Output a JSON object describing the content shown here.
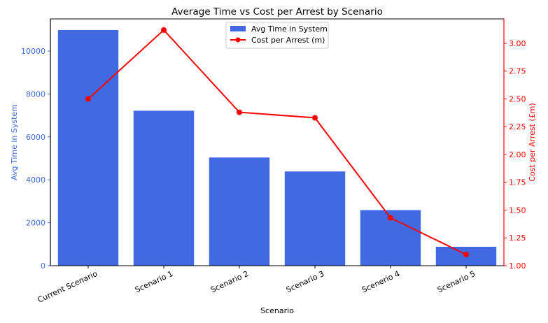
{
  "chart_data": {
    "type": "bar",
    "title": "Average Time vs Cost per Arrest by Scenario",
    "xlabel": "Scenario",
    "categories": [
      "Current Scenario",
      "Scenario 1",
      "Scenario 2",
      "Scenario 3",
      "Scenerio 4",
      "Scenario 5"
    ],
    "series": [
      {
        "name": "Avg Time in System",
        "type": "bar",
        "axis": "left",
        "color": "#4169e1",
        "values": [
          10980,
          7220,
          5040,
          4390,
          2590,
          880
        ]
      },
      {
        "name": "Cost per Arrest (m)",
        "type": "line",
        "axis": "right",
        "color": "#ff0000",
        "values": [
          2.5,
          3.12,
          2.38,
          2.33,
          1.43,
          1.1
        ]
      }
    ],
    "y_left": {
      "label": "Avg Time in System",
      "color": "#4169e1",
      "ylim": [
        0,
        11500
      ],
      "ticks": [
        0,
        2000,
        4000,
        6000,
        8000,
        10000
      ],
      "tick_labels": [
        "0",
        "2000",
        "4000",
        "6000",
        "8000",
        "10000"
      ]
    },
    "y_right": {
      "label": "Cost per Arrest (£m)",
      "color": "#ff0000",
      "ylim": [
        1.0,
        3.22
      ],
      "ticks": [
        1.0,
        1.25,
        1.5,
        1.75,
        2.0,
        2.25,
        2.5,
        2.75,
        3.0
      ],
      "tick_labels": [
        "1.00",
        "1.25",
        "1.50",
        "1.75",
        "2.00",
        "2.25",
        "2.50",
        "2.75",
        "3.00"
      ]
    },
    "legend_position": "top-center",
    "grid": false
  }
}
